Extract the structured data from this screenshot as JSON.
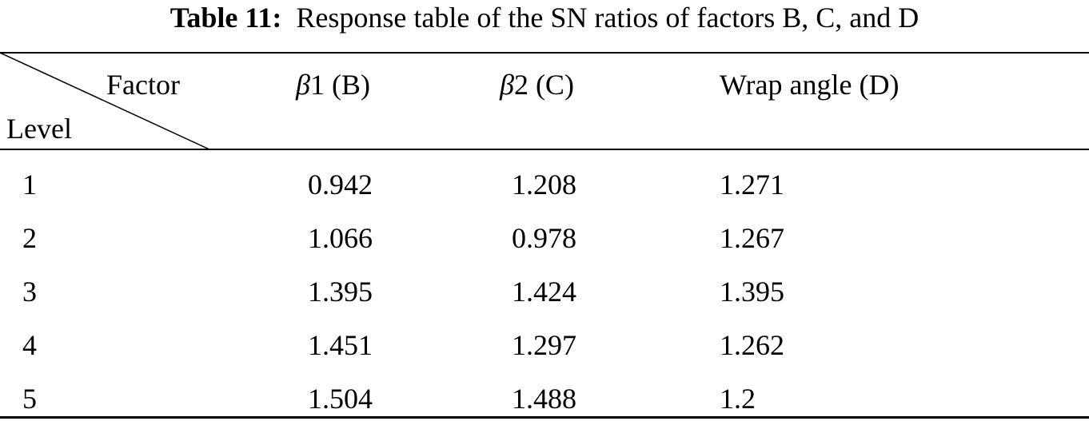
{
  "caption": {
    "label": "Table 11:",
    "text": "Response table of the SN ratios of factors B, C, and D"
  },
  "table": {
    "corner": {
      "top": "Factor",
      "bottom": "Level"
    },
    "columns": [
      {
        "symbol": "β",
        "text": "1 (B)"
      },
      {
        "symbol": "β",
        "text": "2 (C)"
      },
      {
        "symbol": "",
        "text": "Wrap angle (D)"
      }
    ],
    "rows": [
      {
        "level": "1",
        "values": [
          "0.942",
          "1.208",
          "1.271"
        ]
      },
      {
        "level": "2",
        "values": [
          "1.066",
          "0.978",
          "1.267"
        ]
      },
      {
        "level": "3",
        "values": [
          "1.395",
          "1.424",
          "1.395"
        ]
      },
      {
        "level": "4",
        "values": [
          "1.451",
          "1.297",
          "1.262"
        ]
      },
      {
        "level": "5",
        "values": [
          "1.504",
          "1.488",
          "1.2"
        ]
      }
    ]
  }
}
